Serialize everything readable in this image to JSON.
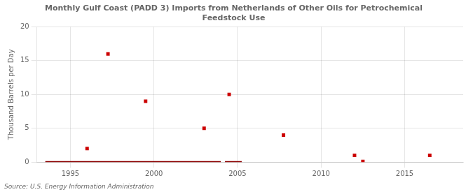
{
  "chart_data": {
    "type": "scatter",
    "title": "Monthly Gulf Coast (PADD 3) Imports from Netherlands of Other Oils for Petrochemical\nFeedstock Use",
    "ylabel": "Thousand Barrels per Day",
    "source": "Source: U.S. Energy Information Administration",
    "xlim": [
      1993.0,
      2018.5
    ],
    "ylim": [
      0,
      20
    ],
    "xticks": [
      1995,
      2000,
      2005,
      2010,
      2015
    ],
    "yticks": [
      0,
      5,
      10,
      15,
      20
    ],
    "grid": true,
    "series": [
      {
        "type": "scatter",
        "marker": "square",
        "color": "#cc0000",
        "x": [
          1996.0,
          1997.25,
          1999.5,
          2003.0,
          2004.5,
          2007.75,
          2012.0,
          2012.5,
          2016.5
        ],
        "values": [
          2.0,
          16.0,
          9.0,
          5.0,
          10.0,
          4.0,
          1.0,
          0.1,
          1.0
        ]
      },
      {
        "type": "line",
        "color": "#8b0000",
        "x": [
          1993.5,
          2004.0
        ],
        "values": [
          0,
          0
        ]
      },
      {
        "type": "line",
        "color": "#8b0000",
        "x": [
          2004.25,
          2005.25
        ],
        "values": [
          0,
          0
        ]
      }
    ]
  }
}
